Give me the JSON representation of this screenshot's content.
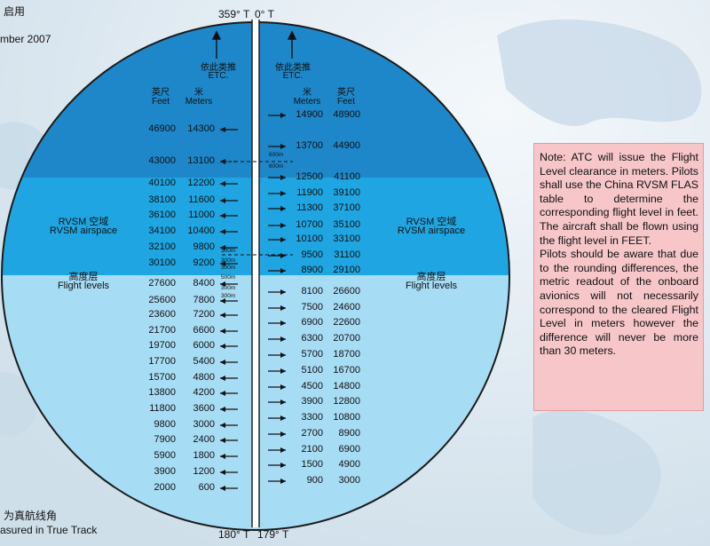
{
  "top_left": {
    "line1": "启用",
    "line2": "mber 2007"
  },
  "bottom_left": {
    "line1": "为真航线角",
    "line2": "asured in True Track"
  },
  "compass": {
    "top_left": "359° T",
    "top_right": "0° T",
    "bottom_left": "180° T",
    "bottom_right": "179° T"
  },
  "column_headers": {
    "etc_cn": "依此类推",
    "etc_en": "ETC.",
    "feet_cn": "英尺",
    "feet_en": "Feet",
    "meters_cn": "米",
    "meters_en": "Meters"
  },
  "zone_labels": {
    "rvsm_cn": "RVSM 空域",
    "rvsm_en": "RVSM airspace",
    "levels_cn": "高度层",
    "levels_en": "Flight levels"
  },
  "separation_labels": {
    "s600a": "600m",
    "s600b": "600m",
    "s300a": "300m",
    "s300b": "300m",
    "s300c": "300m",
    "s500": "500m",
    "s300d": "300m",
    "s300e": "300m"
  },
  "colors": {
    "upper_zone": "#1e87c9",
    "rvsm_zone": "#1fa6e2",
    "lower_zone": "#a7dcf5",
    "note_bg": "#f6c6c9"
  },
  "left_levels": [
    {
      "feet": "46900",
      "meters": "14300",
      "arrow": "solid"
    },
    {
      "feet": "43000",
      "meters": "13100",
      "arrow": "dashed"
    },
    {
      "feet": "40100",
      "meters": "12200",
      "arrow": "solid"
    },
    {
      "feet": "38100",
      "meters": "11600",
      "arrow": "solid"
    },
    {
      "feet": "36100",
      "meters": "11000",
      "arrow": "solid"
    },
    {
      "feet": "34100",
      "meters": "10400",
      "arrow": "solid"
    },
    {
      "feet": "32100",
      "meters": "9800",
      "arrow": "solid"
    },
    {
      "feet": "30100",
      "meters": "9200",
      "arrow": "solid"
    },
    {
      "feet": "27600",
      "meters": "8400",
      "arrow": "solid"
    },
    {
      "feet": "25600",
      "meters": "7800",
      "arrow": "solid"
    },
    {
      "feet": "23600",
      "meters": "7200",
      "arrow": "solid"
    },
    {
      "feet": "21700",
      "meters": "6600",
      "arrow": "solid"
    },
    {
      "feet": "19700",
      "meters": "6000",
      "arrow": "solid"
    },
    {
      "feet": "17700",
      "meters": "5400",
      "arrow": "solid"
    },
    {
      "feet": "15700",
      "meters": "4800",
      "arrow": "solid"
    },
    {
      "feet": "13800",
      "meters": "4200",
      "arrow": "solid"
    },
    {
      "feet": "11800",
      "meters": "3600",
      "arrow": "solid"
    },
    {
      "feet": "9800",
      "meters": "3000",
      "arrow": "solid"
    },
    {
      "feet": "7900",
      "meters": "2400",
      "arrow": "solid"
    },
    {
      "feet": "5900",
      "meters": "1800",
      "arrow": "solid"
    },
    {
      "feet": "3900",
      "meters": "1200",
      "arrow": "solid"
    },
    {
      "feet": "2000",
      "meters": "600",
      "arrow": "solid"
    }
  ],
  "right_levels": [
    {
      "meters": "14900",
      "feet": "48900"
    },
    {
      "meters": "13700",
      "feet": "44900"
    },
    {
      "meters": "12500",
      "feet": "41100"
    },
    {
      "meters": "11900",
      "feet": "39100"
    },
    {
      "meters": "11300",
      "feet": "37100"
    },
    {
      "meters": "10700",
      "feet": "35100"
    },
    {
      "meters": "10100",
      "feet": "33100"
    },
    {
      "meters": "9500",
      "feet": "31100"
    },
    {
      "meters": "8900",
      "feet": "29100"
    },
    {
      "meters": "8100",
      "feet": "26600"
    },
    {
      "meters": "7500",
      "feet": "24600"
    },
    {
      "meters": "6900",
      "feet": "22600"
    },
    {
      "meters": "6300",
      "feet": "20700"
    },
    {
      "meters": "5700",
      "feet": "18700"
    },
    {
      "meters": "5100",
      "feet": "16700"
    },
    {
      "meters": "4500",
      "feet": "14800"
    },
    {
      "meters": "3900",
      "feet": "12800"
    },
    {
      "meters": "3300",
      "feet": "10800"
    },
    {
      "meters": "2700",
      "feet": "8900"
    },
    {
      "meters": "2100",
      "feet": "6900"
    },
    {
      "meters": "1500",
      "feet": "4900"
    },
    {
      "meters": "900",
      "feet": "3000"
    }
  ],
  "note": {
    "para1": "Note: ATC will issue the Flight Level clearance in meters. Pilots shall use the China RVSM FLAS table to determine the corresponding flight level in feet. The aircraft shall be flown using the flight level in FEET.",
    "para2": "Pilots should be aware that due to the rounding differences, the metric readout of the onboard avionics will not necessarily correspond to the cleared Flight Level in meters however the difference will never be more than 30 meters."
  }
}
